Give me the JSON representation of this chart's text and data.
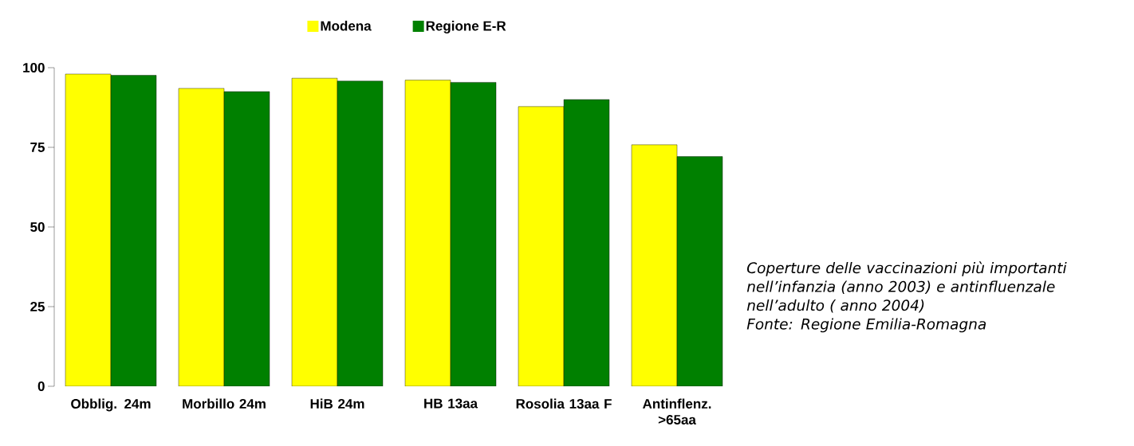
{
  "chart_data": {
    "type": "bar",
    "categories": [
      "Obblig. 24m",
      "Morbillo 24m",
      "HiB 24m",
      "HB 13aa",
      "Rosolia 13aa F",
      "Antinflenz. >65aa"
    ],
    "series": [
      {
        "name": "Modena",
        "color": "#ffff00",
        "values": [
          98,
          93.5,
          96.7,
          96.1,
          87.8,
          75.8
        ]
      },
      {
        "name": "Regione E-R",
        "color": "#008000",
        "values": [
          97.6,
          92.5,
          95.8,
          95.4,
          90,
          72.1
        ]
      }
    ],
    "ylim": [
      0,
      100
    ],
    "yticks": [
      0,
      25,
      50,
      75,
      100
    ],
    "legend": "top",
    "annotations": [
      "Coperture delle vaccinazioni più importanti nell’infanzia (anno 2003) e antinfluenzale nell’adulto ( anno 2004)",
      "Fonte: Regione Emilia-Romagna"
    ]
  }
}
